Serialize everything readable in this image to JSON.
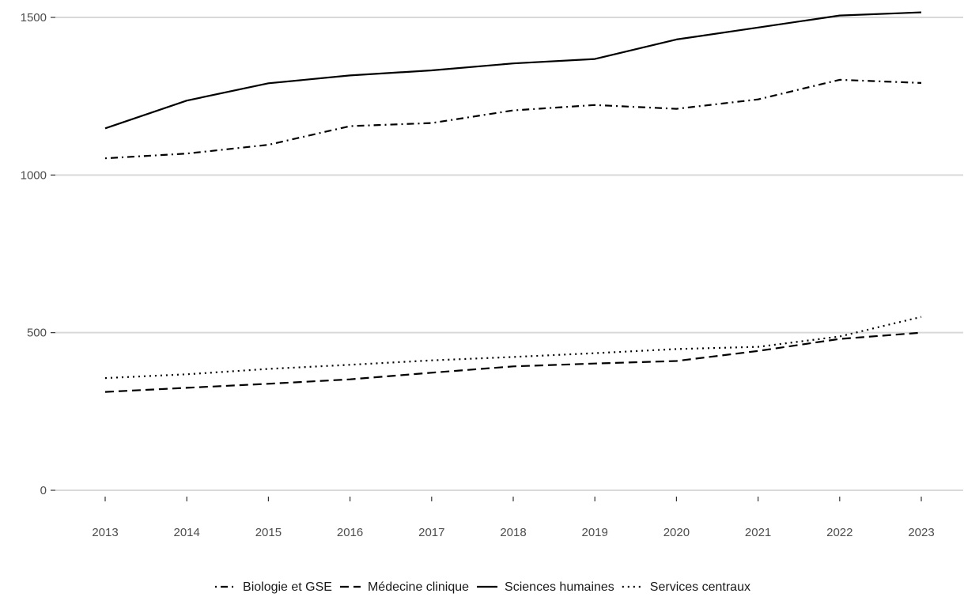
{
  "chart_data": {
    "type": "line",
    "title": "",
    "xlabel": "",
    "ylabel": "",
    "x": [
      "2013",
      "2014",
      "2015",
      "2016",
      "2017",
      "2018",
      "2019",
      "2020",
      "2021",
      "2022",
      "2023"
    ],
    "ylim": [
      0,
      1500
    ],
    "yticks": [
      "0",
      "500",
      "1000",
      "1500"
    ],
    "grid": "horizontal",
    "legend_position": "bottom",
    "series": [
      {
        "name": "Biologie et GSE",
        "line_style": "dotdash",
        "color": "#000000",
        "values": [
          1053,
          1068,
          1096,
          1155,
          1165,
          1205,
          1222,
          1210,
          1240,
          1302,
          1292
        ]
      },
      {
        "name": "Médecine clinique",
        "line_style": "dashed",
        "color": "#000000",
        "values": [
          312,
          325,
          338,
          352,
          373,
          393,
          402,
          410,
          442,
          480,
          500
        ]
      },
      {
        "name": "Sciences humaines",
        "line_style": "solid",
        "color": "#000000",
        "values": [
          1148,
          1236,
          1291,
          1316,
          1332,
          1354,
          1368,
          1430,
          1468,
          1506,
          1516
        ]
      },
      {
        "name": "Services centraux",
        "line_style": "dotted",
        "color": "#000000",
        "values": [
          356,
          368,
          385,
          398,
          412,
          423,
          435,
          448,
          455,
          488,
          550
        ]
      }
    ]
  }
}
